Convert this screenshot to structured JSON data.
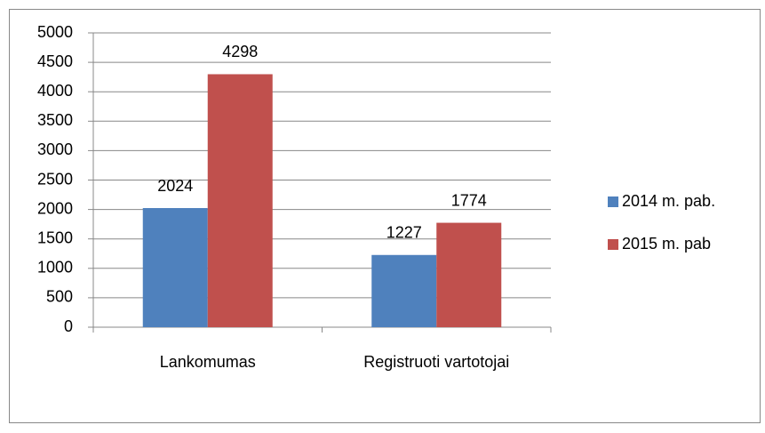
{
  "chart_data": {
    "type": "bar",
    "categories": [
      "Lankomumas",
      "Registruoti vartotojai"
    ],
    "series": [
      {
        "name": "2014 m. pab.",
        "color": "#4f81bd",
        "values": [
          2024,
          1227
        ]
      },
      {
        "name": "2015 m. pab",
        "color": "#c0504d",
        "values": [
          4298,
          1774
        ]
      }
    ],
    "ylim": [
      0,
      5000
    ],
    "yticks": [
      0,
      500,
      1000,
      1500,
      2000,
      2500,
      3000,
      3500,
      4000,
      4500,
      5000
    ],
    "grid": true,
    "legend": "right"
  }
}
